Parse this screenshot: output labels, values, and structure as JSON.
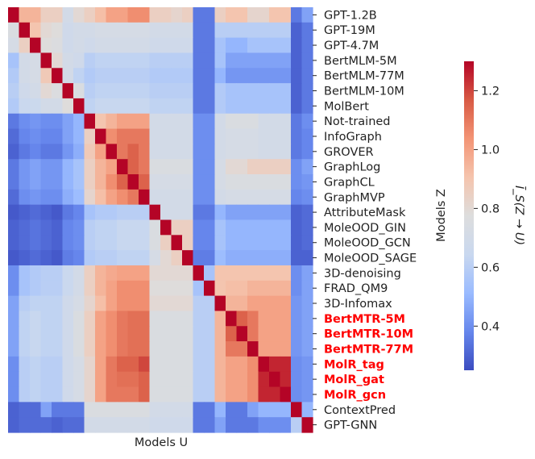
{
  "chart_data": {
    "type": "heatmap",
    "title": "",
    "xlabel": "Models U",
    "ylabel": "Models Z",
    "colorbar_label": "Ī_S(Z → U)",
    "colorbar_range": [
      0.25,
      1.3
    ],
    "colorbar_ticks": [
      "0.4",
      "0.6",
      "0.8",
      "1.0",
      "1.2"
    ],
    "colormap": [
      "#3b4cc0",
      "#6687ec",
      "#9abbff",
      "#c9d8ef",
      "#dddddd",
      "#f5c4ad",
      "#f39475",
      "#d85a44",
      "#b40426"
    ],
    "models": [
      "GPT-1.2B",
      "GPT-19M",
      "GPT-4.7M",
      "BertMLM-5M",
      "BertMLM-77M",
      "BertMLM-10M",
      "MolBert",
      "Not-trained",
      "InfoGraph",
      "GROVER",
      "GraphLog",
      "GraphCL",
      "GraphMVP",
      "AttributeMask",
      "MoleOOD_GIN",
      "MoleOOD_GCN",
      "MoleOOD_SAGE",
      "3D-denoising",
      "FRAD_QM9",
      "3D-Infomax",
      "BertMTR-5M",
      "BertMTR-10M",
      "BertMTR-77M",
      "MolR_tag",
      "MolR_gat",
      "MolR_gcn",
      "ContextPred",
      "GPT-GNN"
    ],
    "highlighted": [
      "BertMTR-5M",
      "BertMTR-10M",
      "BertMTR-77M",
      "MolR_tag",
      "MolR_gat",
      "MolR_gcn"
    ],
    "values": [
      [
        1.3,
        0.95,
        0.95,
        0.85,
        0.85,
        0.7,
        0.8,
        0.85,
        0.92,
        1.0,
        1.0,
        1.05,
        1.05,
        0.85,
        0.85,
        0.82,
        0.85,
        0.35,
        0.35,
        0.85,
        0.9,
        0.9,
        0.82,
        0.82,
        0.9,
        0.9,
        0.35,
        0.45
      ],
      [
        0.75,
        1.3,
        0.9,
        0.8,
        0.78,
        0.68,
        0.7,
        0.7,
        0.72,
        0.72,
        0.72,
        0.72,
        0.72,
        0.7,
        0.7,
        0.7,
        0.7,
        0.35,
        0.35,
        0.6,
        0.6,
        0.6,
        0.6,
        0.6,
        0.6,
        0.6,
        0.3,
        0.35
      ],
      [
        0.72,
        0.85,
        1.3,
        0.78,
        0.76,
        0.68,
        0.7,
        0.68,
        0.7,
        0.7,
        0.7,
        0.7,
        0.7,
        0.68,
        0.68,
        0.68,
        0.68,
        0.35,
        0.35,
        0.55,
        0.5,
        0.5,
        0.55,
        0.55,
        0.55,
        0.55,
        0.3,
        0.35
      ],
      [
        0.55,
        0.7,
        0.72,
        1.3,
        0.8,
        0.7,
        0.68,
        0.6,
        0.62,
        0.62,
        0.62,
        0.62,
        0.62,
        0.6,
        0.6,
        0.6,
        0.6,
        0.35,
        0.35,
        0.55,
        0.45,
        0.45,
        0.45,
        0.45,
        0.45,
        0.45,
        0.3,
        0.35
      ],
      [
        0.58,
        0.7,
        0.72,
        0.88,
        1.3,
        0.7,
        0.62,
        0.58,
        0.6,
        0.6,
        0.6,
        0.6,
        0.6,
        0.58,
        0.58,
        0.58,
        0.58,
        0.35,
        0.35,
        0.5,
        0.42,
        0.42,
        0.42,
        0.42,
        0.42,
        0.42,
        0.3,
        0.35
      ],
      [
        0.6,
        0.68,
        0.7,
        0.8,
        0.76,
        1.3,
        0.75,
        0.6,
        0.62,
        0.62,
        0.62,
        0.62,
        0.62,
        0.6,
        0.6,
        0.6,
        0.6,
        0.35,
        0.35,
        0.58,
        0.55,
        0.55,
        0.55,
        0.55,
        0.55,
        0.55,
        0.3,
        0.35
      ],
      [
        0.58,
        0.65,
        0.66,
        0.7,
        0.7,
        0.78,
        1.3,
        0.62,
        0.64,
        0.64,
        0.64,
        0.64,
        0.64,
        0.62,
        0.62,
        0.62,
        0.62,
        0.35,
        0.35,
        0.58,
        0.55,
        0.55,
        0.55,
        0.55,
        0.55,
        0.55,
        0.3,
        0.35
      ],
      [
        0.35,
        0.4,
        0.42,
        0.4,
        0.4,
        0.45,
        0.5,
        1.3,
        0.9,
        0.95,
        1.0,
        1.0,
        1.0,
        0.7,
        0.7,
        0.7,
        0.7,
        0.4,
        0.4,
        0.7,
        0.75,
        0.75,
        0.75,
        0.7,
        0.7,
        0.7,
        0.35,
        0.4
      ],
      [
        0.32,
        0.38,
        0.4,
        0.38,
        0.38,
        0.45,
        0.5,
        0.85,
        1.3,
        1.05,
        1.1,
        1.1,
        1.1,
        0.7,
        0.7,
        0.7,
        0.7,
        0.4,
        0.4,
        0.7,
        0.72,
        0.72,
        0.72,
        0.7,
        0.7,
        0.7,
        0.35,
        0.38
      ],
      [
        0.3,
        0.35,
        0.38,
        0.35,
        0.35,
        0.42,
        0.48,
        0.88,
        1.0,
        1.3,
        1.1,
        1.15,
        1.1,
        0.7,
        0.7,
        0.7,
        0.7,
        0.4,
        0.4,
        0.7,
        0.72,
        0.72,
        0.72,
        0.7,
        0.7,
        0.7,
        0.35,
        0.38
      ],
      [
        0.35,
        0.42,
        0.45,
        0.42,
        0.42,
        0.5,
        0.55,
        0.85,
        0.95,
        1.0,
        1.3,
        1.15,
        1.1,
        0.75,
        0.75,
        0.75,
        0.75,
        0.4,
        0.4,
        0.72,
        0.8,
        0.8,
        0.85,
        0.85,
        0.85,
        0.85,
        0.4,
        0.45
      ],
      [
        0.35,
        0.42,
        0.45,
        0.42,
        0.42,
        0.5,
        0.55,
        0.85,
        0.95,
        1.05,
        1.15,
        1.3,
        1.15,
        0.72,
        0.72,
        0.72,
        0.72,
        0.4,
        0.4,
        0.72,
        0.75,
        0.75,
        0.75,
        0.75,
        0.75,
        0.75,
        0.4,
        0.42
      ],
      [
        0.32,
        0.4,
        0.42,
        0.4,
        0.4,
        0.48,
        0.52,
        0.82,
        0.92,
        1.0,
        1.05,
        1.1,
        1.3,
        0.7,
        0.7,
        0.7,
        0.7,
        0.4,
        0.4,
        0.7,
        0.72,
        0.72,
        0.72,
        0.72,
        0.72,
        0.72,
        0.38,
        0.4
      ],
      [
        0.28,
        0.3,
        0.32,
        0.3,
        0.28,
        0.35,
        0.38,
        0.55,
        0.58,
        0.58,
        0.6,
        0.6,
        0.6,
        1.3,
        0.7,
        0.7,
        0.7,
        0.35,
        0.35,
        0.5,
        0.45,
        0.45,
        0.45,
        0.45,
        0.45,
        0.45,
        0.3,
        0.32
      ],
      [
        0.3,
        0.32,
        0.34,
        0.32,
        0.3,
        0.38,
        0.4,
        0.6,
        0.62,
        0.62,
        0.64,
        0.64,
        0.64,
        0.75,
        1.3,
        0.85,
        0.85,
        0.38,
        0.38,
        0.55,
        0.5,
        0.5,
        0.5,
        0.5,
        0.5,
        0.5,
        0.3,
        0.32
      ],
      [
        0.3,
        0.32,
        0.34,
        0.32,
        0.3,
        0.38,
        0.4,
        0.6,
        0.62,
        0.62,
        0.64,
        0.64,
        0.64,
        0.75,
        0.85,
        1.3,
        0.85,
        0.38,
        0.38,
        0.55,
        0.5,
        0.5,
        0.5,
        0.5,
        0.5,
        0.5,
        0.3,
        0.32
      ],
      [
        0.28,
        0.3,
        0.32,
        0.3,
        0.28,
        0.36,
        0.38,
        0.58,
        0.6,
        0.6,
        0.62,
        0.62,
        0.62,
        0.72,
        0.8,
        0.85,
        1.3,
        0.36,
        0.36,
        0.52,
        0.48,
        0.48,
        0.48,
        0.48,
        0.48,
        0.48,
        0.3,
        0.3
      ],
      [
        0.4,
        0.55,
        0.58,
        0.6,
        0.6,
        0.65,
        0.7,
        0.85,
        0.95,
        0.98,
        1.0,
        1.0,
        1.0,
        0.8,
        0.8,
        0.8,
        0.8,
        1.3,
        0.55,
        0.9,
        0.9,
        0.9,
        0.9,
        0.9,
        0.9,
        0.9,
        0.4,
        0.45
      ],
      [
        0.4,
        0.55,
        0.58,
        0.6,
        0.6,
        0.65,
        0.7,
        0.85,
        0.95,
        1.0,
        1.05,
        1.05,
        1.05,
        0.78,
        0.78,
        0.78,
        0.78,
        0.55,
        1.3,
        0.9,
        0.92,
        0.92,
        0.95,
        0.95,
        0.95,
        0.95,
        0.4,
        0.45
      ],
      [
        0.45,
        0.6,
        0.62,
        0.62,
        0.62,
        0.68,
        0.72,
        0.82,
        0.92,
        1.0,
        1.05,
        1.05,
        1.05,
        0.8,
        0.8,
        0.8,
        0.8,
        0.6,
        0.6,
        1.3,
        0.95,
        0.95,
        1.0,
        1.0,
        1.0,
        1.0,
        0.42,
        0.45
      ],
      [
        0.45,
        0.62,
        0.64,
        0.62,
        0.62,
        0.68,
        0.75,
        0.85,
        1.0,
        1.05,
        1.1,
        1.12,
        1.12,
        0.75,
        0.75,
        0.75,
        0.75,
        0.6,
        0.6,
        0.95,
        1.3,
        1.15,
        1.1,
        1.0,
        1.0,
        1.0,
        0.42,
        0.45
      ],
      [
        0.45,
        0.62,
        0.64,
        0.62,
        0.62,
        0.68,
        0.75,
        0.85,
        1.0,
        1.05,
        1.1,
        1.12,
        1.12,
        0.75,
        0.75,
        0.75,
        0.75,
        0.6,
        0.6,
        0.95,
        1.15,
        1.3,
        1.1,
        1.0,
        1.0,
        1.0,
        0.42,
        0.45
      ],
      [
        0.45,
        0.62,
        0.64,
        0.62,
        0.62,
        0.68,
        0.75,
        0.85,
        1.0,
        1.05,
        1.1,
        1.12,
        1.12,
        0.75,
        0.75,
        0.75,
        0.75,
        0.6,
        0.6,
        0.95,
        1.1,
        1.1,
        1.3,
        1.0,
        1.0,
        1.0,
        0.42,
        0.45
      ],
      [
        0.4,
        0.6,
        0.62,
        0.6,
        0.6,
        0.68,
        0.72,
        0.82,
        1.0,
        1.1,
        1.15,
        1.15,
        1.2,
        0.75,
        0.75,
        0.75,
        0.75,
        0.6,
        0.6,
        0.95,
        1.0,
        1.0,
        1.05,
        1.3,
        1.25,
        1.25,
        0.4,
        0.42
      ],
      [
        0.4,
        0.6,
        0.62,
        0.6,
        0.6,
        0.68,
        0.72,
        0.82,
        1.0,
        1.1,
        1.12,
        1.12,
        1.15,
        0.75,
        0.75,
        0.75,
        0.75,
        0.6,
        0.6,
        0.95,
        1.0,
        1.0,
        1.05,
        1.25,
        1.3,
        1.25,
        0.4,
        0.42
      ],
      [
        0.4,
        0.6,
        0.62,
        0.6,
        0.6,
        0.68,
        0.72,
        0.82,
        1.0,
        1.1,
        1.1,
        1.1,
        1.15,
        0.75,
        0.75,
        0.75,
        0.75,
        0.6,
        0.6,
        0.95,
        1.0,
        1.0,
        1.05,
        1.25,
        1.25,
        1.3,
        0.4,
        0.42
      ],
      [
        0.3,
        0.32,
        0.32,
        0.45,
        0.35,
        0.35,
        0.35,
        0.75,
        0.75,
        0.75,
        0.75,
        0.75,
        0.75,
        0.7,
        0.7,
        0.7,
        0.7,
        0.35,
        0.35,
        0.5,
        0.35,
        0.35,
        0.45,
        0.5,
        0.5,
        0.5,
        1.3,
        0.5
      ],
      [
        0.3,
        0.32,
        0.32,
        0.32,
        0.3,
        0.32,
        0.32,
        0.7,
        0.7,
        0.7,
        0.7,
        0.7,
        0.7,
        0.68,
        0.68,
        0.68,
        0.68,
        0.35,
        0.35,
        0.45,
        0.35,
        0.35,
        0.35,
        0.4,
        0.4,
        0.4,
        0.6,
        1.3
      ]
    ]
  }
}
